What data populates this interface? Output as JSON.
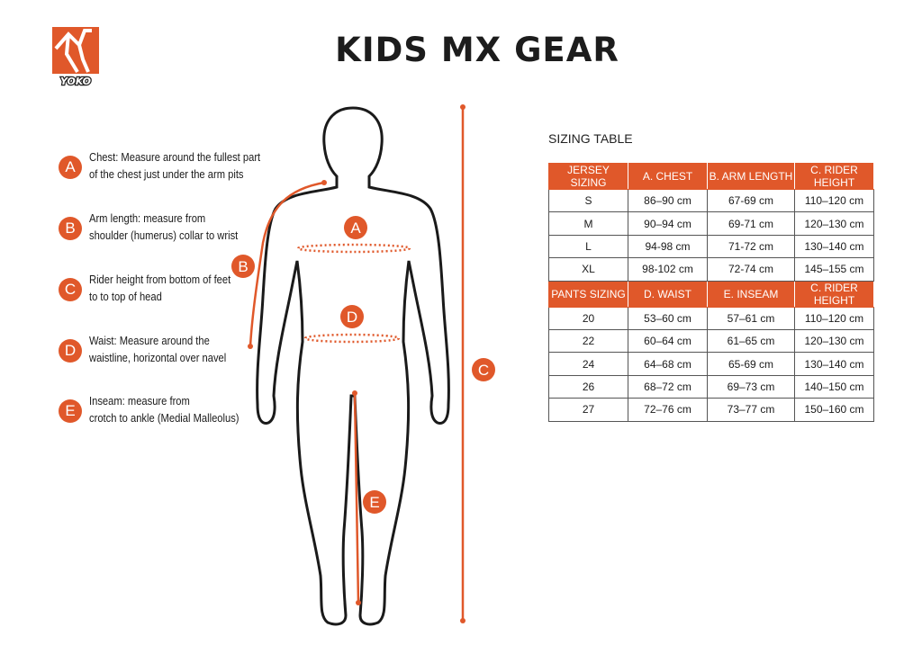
{
  "title": "KIDS MX GEAR",
  "logo": {
    "text": "YOKO",
    "color": "#e0582a"
  },
  "accent_color": "#e0582a",
  "legend": [
    {
      "letter": "A",
      "text": [
        "Chest: Measure around  the fullest part",
        "of the chest just under the arm pits"
      ]
    },
    {
      "letter": "B",
      "text": [
        "Arm length: measure from",
        "shoulder (humerus) collar to wrist"
      ]
    },
    {
      "letter": "C",
      "text": [
        "Rider height from bottom of feet",
        "to to top of head"
      ]
    },
    {
      "letter": "D",
      "text": [
        "Waist: Measure around the",
        "waistline, horizontal over navel"
      ]
    },
    {
      "letter": "E",
      "text": [
        "Inseam: measure from",
        "crotch to ankle (Medial Malleolus)"
      ]
    }
  ],
  "figure_markers": {
    "A": "A",
    "B": "B",
    "C": "C",
    "D": "D",
    "E": "E"
  },
  "table": {
    "caption": "SIZING TABLE",
    "jersey_header": [
      "JERSEY SIZING",
      "A. CHEST",
      "B. ARM LENGTH",
      "C. RIDER HEIGHT"
    ],
    "jersey_rows": [
      [
        "S",
        "86–90 cm",
        "67-69 cm",
        "110–120 cm"
      ],
      [
        "M",
        "90–94 cm",
        "69-71 cm",
        "120–130 cm"
      ],
      [
        "L",
        "94-98 cm",
        "71-72 cm",
        "130–140 cm"
      ],
      [
        "XL",
        "98-102 cm",
        "72-74 cm",
        "145–155 cm"
      ]
    ],
    "pants_header": [
      "PANTS SIZING",
      "D. WAIST",
      "E. INSEAM",
      "C. RIDER HEIGHT"
    ],
    "pants_rows": [
      [
        "20",
        "53–60 cm",
        "57–61 cm",
        "110–120 cm"
      ],
      [
        "22",
        "60–64 cm",
        "61–65 cm",
        "120–130 cm"
      ],
      [
        "24",
        "64–68 cm",
        "65-69 cm",
        "130–140 cm"
      ],
      [
        "26",
        "68–72 cm",
        "69–73 cm",
        "140–150 cm"
      ],
      [
        "27",
        "72–76 cm",
        "73–77 cm",
        "150–160 cm"
      ]
    ]
  }
}
